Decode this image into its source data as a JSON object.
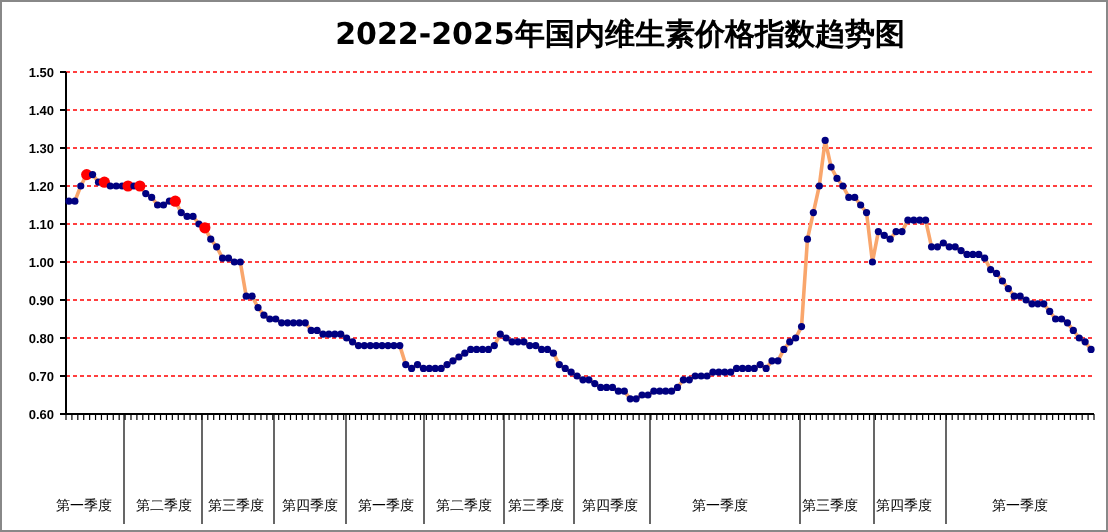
{
  "chart_data": {
    "type": "line",
    "title": "2022-2025年国内维生素价格指数趋势图",
    "categories": [
      null,
      null,
      null,
      null,
      null,
      null,
      null,
      null,
      null,
      null,
      null,
      null,
      null,
      null,
      null,
      null,
      null,
      null,
      null,
      null,
      null,
      null,
      null,
      null,
      null,
      null,
      null,
      null,
      null,
      null,
      null,
      null,
      null,
      null,
      null,
      null,
      null,
      null,
      null,
      null,
      null,
      null,
      null,
      null,
      null,
      null,
      null,
      null,
      null,
      null,
      null,
      null,
      null,
      null,
      null,
      null,
      null,
      null,
      null,
      null,
      null,
      null,
      null,
      null,
      null,
      null,
      null,
      null,
      null,
      null,
      null,
      null,
      null,
      null,
      null,
      null,
      null,
      null,
      null,
      null,
      null,
      null,
      null,
      null,
      null,
      null,
      null,
      null,
      null,
      null,
      null,
      null,
      null,
      null,
      null,
      null,
      null,
      null,
      null,
      null,
      null,
      null,
      null,
      null,
      null,
      null,
      null,
      null,
      null,
      null,
      null,
      null,
      null,
      null,
      null,
      null,
      null,
      null,
      null,
      null,
      null,
      null,
      null,
      null,
      null,
      null,
      null,
      null,
      null,
      null,
      null,
      null,
      null,
      null,
      null,
      null,
      null,
      null,
      null,
      null,
      null,
      null,
      null,
      null,
      null,
      null,
      null,
      null,
      null,
      null,
      null,
      null,
      null,
      null,
      null,
      null,
      null,
      null,
      null,
      null,
      null,
      null,
      null,
      null,
      null,
      null,
      null,
      null,
      null,
      null,
      null,
      null,
      null,
      null
    ],
    "series": [
      {
        "color": "#f9a66c",
        "values": [
          1.16,
          1.16,
          1.2,
          1.23,
          1.23,
          1.21,
          1.21,
          1.2,
          1.2,
          1.2,
          1.2,
          1.2,
          1.2,
          1.18,
          1.17,
          1.15,
          1.15,
          1.16,
          1.16,
          1.13,
          1.12,
          1.12,
          1.1,
          1.09,
          1.06,
          1.04,
          1.01,
          1.01,
          1.0,
          1.0,
          0.91,
          0.91,
          0.88,
          0.86,
          0.85,
          0.85,
          0.84,
          0.84,
          0.84,
          0.84,
          0.84,
          0.82,
          0.82,
          0.81,
          0.81,
          0.81,
          0.81,
          0.8,
          0.79,
          0.78,
          0.78,
          0.78,
          0.78,
          0.78,
          0.78,
          0.78,
          0.78,
          0.73,
          0.72,
          0.73,
          0.72,
          0.72,
          0.72,
          0.72,
          0.73,
          0.74,
          0.75,
          0.76,
          0.77,
          0.77,
          0.77,
          0.77,
          0.78,
          0.81,
          0.8,
          0.79,
          0.79,
          0.79,
          0.78,
          0.78,
          0.77,
          0.77,
          0.76,
          0.73,
          0.72,
          0.71,
          0.7,
          0.69,
          0.69,
          0.68,
          0.67,
          0.67,
          0.67,
          0.66,
          0.66,
          0.64,
          0.64,
          0.65,
          0.65,
          0.66,
          0.66,
          0.66,
          0.66,
          0.67,
          0.69,
          0.69,
          0.7,
          0.7,
          0.7,
          0.71,
          0.71,
          0.71,
          0.71,
          0.72,
          0.72,
          0.72,
          0.72,
          0.73,
          0.72,
          0.74,
          0.74,
          0.77,
          0.79,
          0.8,
          0.83,
          1.06,
          1.13,
          1.2,
          1.32,
          1.25,
          1.22,
          1.2,
          1.17,
          1.17,
          1.15,
          1.13,
          1.0,
          1.08,
          1.07,
          1.06,
          1.08,
          1.08,
          1.11,
          1.11,
          1.11,
          1.11,
          1.04,
          1.04,
          1.05,
          1.04,
          1.04,
          1.03,
          1.02,
          1.02,
          1.02,
          1.01,
          0.98,
          0.97,
          0.95,
          0.93,
          0.91,
          0.91,
          0.9,
          0.89,
          0.89,
          0.89,
          0.87,
          0.85,
          0.85,
          0.84,
          0.82,
          0.8,
          0.79,
          0.77
        ],
        "colors": [
          "#000080",
          "#000080",
          "#000080",
          "#ff0000",
          "#000080",
          "#000080",
          "#ff0000",
          "#000080",
          "#000080",
          "#000080",
          "#ff0000",
          "#000080",
          "#ff0000",
          "#000080",
          "#000080",
          "#000080",
          "#000080",
          "#000080",
          "#ff0000",
          "#000080",
          "#000080",
          "#000080",
          "#000080",
          "#ff0000",
          "#000080",
          "#000080",
          "#000080",
          "#000080",
          "#000080",
          "#000080",
          "#000080",
          "#000080",
          "#000080",
          "#000080",
          "#000080",
          "#000080",
          "#000080",
          "#000080",
          "#000080",
          "#000080",
          "#000080",
          "#000080",
          "#000080",
          "#000080",
          "#000080",
          "#000080",
          "#000080",
          "#000080",
          "#000080",
          "#000080",
          "#000080",
          "#000080",
          "#000080",
          "#000080",
          "#000080",
          "#000080",
          "#000080",
          "#000080",
          "#000080",
          "#000080",
          "#000080",
          "#000080",
          "#000080",
          "#000080",
          "#000080",
          "#000080",
          "#000080",
          "#000080",
          "#000080",
          "#000080",
          "#000080",
          "#000080",
          "#000080",
          "#000080",
          "#000080",
          "#000080",
          "#000080",
          "#000080",
          "#000080",
          "#000080",
          "#000080",
          "#000080",
          "#000080",
          "#000080",
          "#000080",
          "#000080",
          "#000080",
          "#000080",
          "#000080",
          "#000080",
          "#000080",
          "#000080",
          "#000080",
          "#000080",
          "#000080",
          "#000080",
          "#000080",
          "#000080",
          "#000080",
          "#000080",
          "#000080",
          "#000080",
          "#000080",
          "#000080",
          "#000080",
          "#000080",
          "#000080",
          "#000080",
          "#000080",
          "#000080",
          "#000080",
          "#000080",
          "#000080",
          "#000080",
          "#000080",
          "#000080",
          "#000080",
          "#000080",
          "#000080",
          "#000080",
          "#000080",
          "#000080",
          "#000080",
          "#000080",
          "#000080",
          "#000080",
          "#000080",
          "#000080",
          "#000080",
          "#000080",
          "#000080",
          "#000080",
          "#000080",
          "#000080",
          "#000080",
          "#000080",
          "#000080",
          "#000080",
          "#000080",
          "#000080",
          "#000080",
          "#000080",
          "#000080",
          "#000080",
          "#000080",
          "#000080",
          "#000080",
          "#000080",
          "#000080",
          "#000080",
          "#000080",
          "#000080",
          "#000080",
          "#000080",
          "#000080",
          "#000080",
          "#000080",
          "#000080",
          "#000080",
          "#000080",
          "#000080",
          "#000080",
          "#000080",
          "#000080",
          "#000080",
          "#000080",
          "#000080",
          "#000080",
          "#000080",
          "#000080",
          "#000080",
          "#000080",
          "#000080",
          "#000080"
        ]
      }
    ],
    "ylim": [
      0.6,
      1.5
    ],
    "yticks": [
      {
        "value": 0.6,
        "label": "0.60"
      },
      {
        "value": 0.7,
        "label": "0.70"
      },
      {
        "value": 0.8,
        "label": "0.80"
      },
      {
        "value": 0.9,
        "label": "0.90"
      },
      {
        "value": 1.0,
        "label": "1.00"
      },
      {
        "value": 1.1,
        "label": "1.10"
      },
      {
        "value": 1.2,
        "label": "1.20"
      },
      {
        "value": 1.3,
        "label": "1.30"
      },
      {
        "value": 1.4,
        "label": "1.40"
      },
      {
        "value": 1.5,
        "label": "1.50"
      }
    ],
    "grid": "y",
    "marker": "circle",
    "line_style": "solid",
    "annotations": [
      "第一季度",
      "第二季度",
      "第三季度",
      "第四季度",
      "第一季度",
      "第二季度",
      "第三季度",
      "第四季度",
      "第一季度",
      "第三季度",
      "第四季度",
      "第一季度"
    ]
  }
}
